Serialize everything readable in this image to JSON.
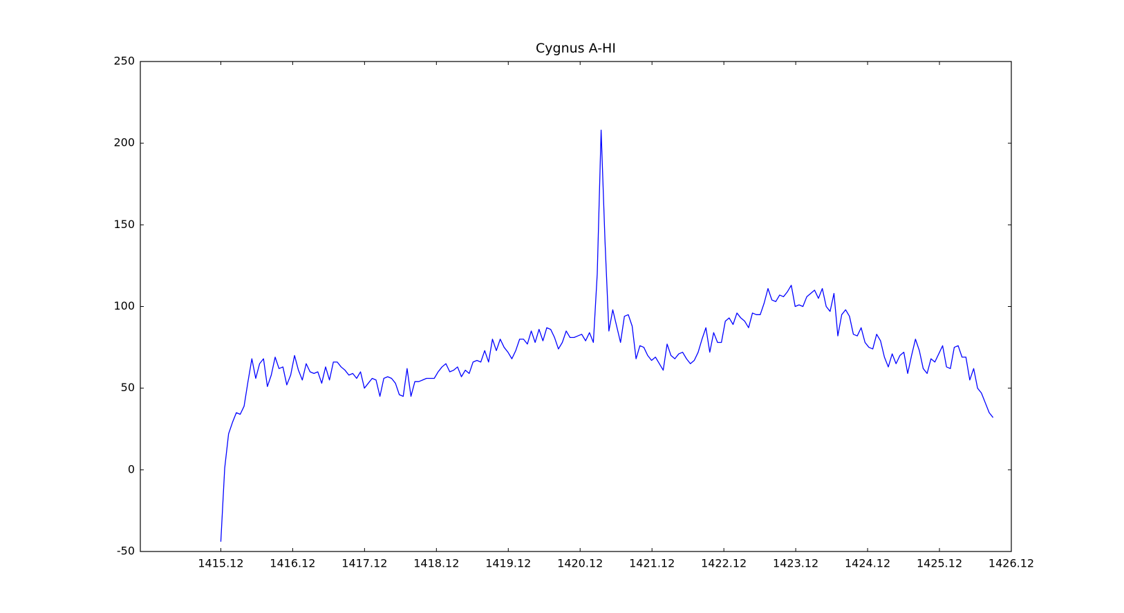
{
  "chart_data": {
    "type": "line",
    "title": "Cygnus A-HI",
    "x": [
      1415.12,
      1415.174,
      1415.228,
      1415.282,
      1415.336,
      1415.39,
      1415.444,
      1415.498,
      1415.552,
      1415.606,
      1415.66,
      1415.714,
      1415.768,
      1415.822,
      1415.876,
      1415.93,
      1415.984,
      1416.038,
      1416.092,
      1416.146,
      1416.2,
      1416.254,
      1416.308,
      1416.362,
      1416.416,
      1416.47,
      1416.524,
      1416.578,
      1416.632,
      1416.686,
      1416.74,
      1416.794,
      1416.848,
      1416.902,
      1416.956,
      1417.01,
      1417.064,
      1417.118,
      1417.172,
      1417.226,
      1417.28,
      1417.334,
      1417.388,
      1417.442,
      1417.496,
      1417.55,
      1417.604,
      1417.658,
      1417.712,
      1417.766,
      1417.82,
      1417.874,
      1417.928,
      1417.982,
      1418.036,
      1418.09,
      1418.144,
      1418.198,
      1418.252,
      1418.306,
      1418.36,
      1418.414,
      1418.468,
      1418.522,
      1418.576,
      1418.63,
      1418.684,
      1418.738,
      1418.792,
      1418.846,
      1418.9,
      1418.954,
      1419.008,
      1419.062,
      1419.116,
      1419.17,
      1419.224,
      1419.278,
      1419.332,
      1419.386,
      1419.44,
      1419.494,
      1419.548,
      1419.602,
      1419.656,
      1419.71,
      1419.764,
      1419.818,
      1419.872,
      1419.926,
      1419.98,
      1420.034,
      1420.088,
      1420.142,
      1420.196,
      1420.25,
      1420.304,
      1420.358,
      1420.412,
      1420.466,
      1420.52,
      1420.574,
      1420.628,
      1420.682,
      1420.736,
      1420.79,
      1420.844,
      1420.898,
      1420.952,
      1421.006,
      1421.06,
      1421.114,
      1421.168,
      1421.222,
      1421.276,
      1421.33,
      1421.384,
      1421.438,
      1421.492,
      1421.546,
      1421.6,
      1421.654,
      1421.708,
      1421.762,
      1421.816,
      1421.87,
      1421.924,
      1421.978,
      1422.032,
      1422.086,
      1422.14,
      1422.194,
      1422.248,
      1422.302,
      1422.356,
      1422.41,
      1422.464,
      1422.518,
      1422.572,
      1422.626,
      1422.68,
      1422.734,
      1422.788,
      1422.842,
      1422.896,
      1422.95,
      1423.004,
      1423.058,
      1423.112,
      1423.166,
      1423.22,
      1423.274,
      1423.328,
      1423.382,
      1423.436,
      1423.49,
      1423.544,
      1423.598,
      1423.652,
      1423.706,
      1423.76,
      1423.814,
      1423.868,
      1423.922,
      1423.976,
      1424.03,
      1424.084,
      1424.138,
      1424.192,
      1424.246,
      1424.3,
      1424.354,
      1424.408,
      1424.462,
      1424.516,
      1424.57,
      1424.624,
      1424.678,
      1424.732,
      1424.786,
      1424.84,
      1424.894,
      1424.948,
      1425.002,
      1425.056,
      1425.11,
      1425.164,
      1425.218,
      1425.272,
      1425.326,
      1425.38,
      1425.434,
      1425.488,
      1425.542,
      1425.596,
      1425.65,
      1425.704,
      1425.758,
      1425.812,
      1425.866
    ],
    "series": [
      {
        "color": "#0000ff",
        "values": [
          -44,
          1,
          22,
          29,
          35,
          34,
          39,
          54,
          68,
          56,
          65,
          68,
          51,
          58,
          69,
          62,
          63,
          52,
          58,
          70,
          61,
          55,
          65,
          60,
          59,
          60,
          53,
          63,
          55,
          66,
          66,
          63,
          61,
          58,
          59,
          56,
          60,
          50,
          53,
          56,
          55,
          45,
          56,
          57,
          56,
          53,
          46,
          45,
          62,
          45,
          54,
          54,
          55,
          56,
          56,
          56,
          60,
          63,
          65,
          60,
          61,
          63,
          57,
          61,
          59,
          66,
          67,
          66,
          73,
          66,
          80,
          73,
          80,
          75,
          72,
          68,
          73,
          80,
          80,
          77,
          85,
          78,
          86,
          79,
          87,
          86,
          81,
          74,
          78,
          85,
          81,
          81,
          82,
          83,
          79,
          84,
          78,
          120,
          208,
          140,
          85,
          98,
          88,
          78,
          94,
          95,
          88,
          68,
          76,
          75,
          70,
          67,
          69,
          65,
          61,
          77,
          70,
          68,
          71,
          72,
          68,
          65,
          67,
          72,
          80,
          87,
          72,
          84,
          78,
          78,
          91,
          93,
          89,
          96,
          93,
          91,
          87,
          96,
          95,
          95,
          102,
          111,
          104,
          103,
          107,
          106,
          109,
          113,
          100,
          101,
          100,
          106,
          108,
          110,
          105,
          111,
          100,
          97,
          108,
          82,
          95,
          98,
          94,
          83,
          82,
          87,
          78,
          75,
          74,
          83,
          79,
          69,
          63,
          71,
          65,
          70,
          72,
          59,
          70,
          80,
          73,
          62,
          59,
          68,
          66,
          71,
          76,
          63,
          62,
          75,
          76,
          69,
          69,
          55,
          62,
          50,
          47,
          41,
          35,
          32
        ]
      }
    ],
    "xlim": [
      1414,
      1426.12
    ],
    "xticks": [
      1415.12,
      1416.12,
      1417.12,
      1418.12,
      1419.12,
      1420.12,
      1421.12,
      1422.12,
      1423.12,
      1424.12,
      1425.12,
      1426.12
    ],
    "ylim": [
      -50,
      250
    ],
    "yticks": [
      -50,
      0,
      50,
      100,
      150,
      200,
      250
    ]
  }
}
